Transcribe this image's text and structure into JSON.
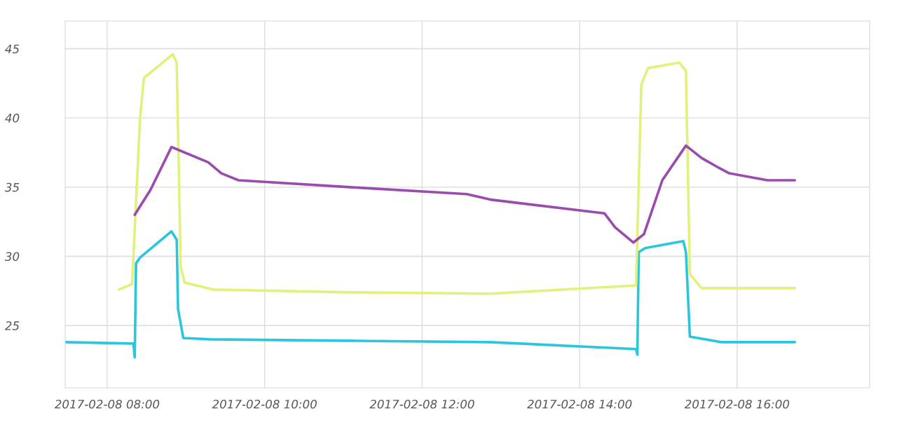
{
  "chart_data": {
    "type": "line",
    "xlim": [
      "2017-02-08T07:28",
      "2017-02-08T17:41"
    ],
    "ylim": [
      20.5,
      47
    ],
    "xticks": [
      {
        "value": "2017-02-08T08:00",
        "label": "2017-02-08 08:00"
      },
      {
        "value": "2017-02-08T10:00",
        "label": "2017-02-08 10:00"
      },
      {
        "value": "2017-02-08T12:00",
        "label": "2017-02-08 12:00"
      },
      {
        "value": "2017-02-08T14:00",
        "label": "2017-02-08 14:00"
      },
      {
        "value": "2017-02-08T16:00",
        "label": "2017-02-08 16:00"
      }
    ],
    "yticks": [
      25,
      30,
      35,
      40,
      45
    ],
    "grid": true,
    "marker": "none",
    "line_style": "solid",
    "series": [
      {
        "color": "#2bc6de",
        "x": [
          "2017-02-08T07:28",
          "2017-02-08T08:20",
          "2017-02-08T08:21",
          "2017-02-08T08:22",
          "2017-02-08T08:25",
          "2017-02-08T08:49",
          "2017-02-08T08:53",
          "2017-02-08T08:54",
          "2017-02-08T08:58",
          "2017-02-08T09:19",
          "2017-02-08T11:05",
          "2017-02-08T12:52",
          "2017-02-08T14:43",
          "2017-02-08T14:44",
          "2017-02-08T14:45",
          "2017-02-08T14:50",
          "2017-02-08T15:19",
          "2017-02-08T15:21",
          "2017-02-08T15:24",
          "2017-02-08T15:48",
          "2017-02-08T16:44"
        ],
        "values": [
          23.8,
          23.7,
          22.7,
          29.5,
          29.9,
          31.8,
          31.2,
          26.2,
          24.1,
          24.0,
          23.9,
          23.8,
          23.3,
          22.9,
          30.3,
          30.6,
          31.1,
          30.3,
          24.2,
          23.8,
          23.8
        ]
      },
      {
        "color": "#e3f07c",
        "x": [
          "2017-02-08T08:09",
          "2017-02-08T08:19",
          "2017-02-08T08:25",
          "2017-02-08T08:28",
          "2017-02-08T08:32",
          "2017-02-08T08:50",
          "2017-02-08T08:53",
          "2017-02-08T08:56",
          "2017-02-08T08:59",
          "2017-02-08T09:21",
          "2017-02-08T11:05",
          "2017-02-08T12:52",
          "2017-02-08T14:43",
          "2017-02-08T14:47",
          "2017-02-08T14:52",
          "2017-02-08T15:16",
          "2017-02-08T15:21",
          "2017-02-08T15:24",
          "2017-02-08T15:33",
          "2017-02-08T16:44"
        ],
        "values": [
          27.6,
          28.0,
          39.9,
          42.9,
          43.2,
          44.6,
          44.0,
          29.3,
          28.1,
          27.6,
          27.4,
          27.3,
          27.9,
          42.4,
          43.6,
          44.0,
          43.4,
          28.7,
          27.7,
          27.7
        ]
      },
      {
        "color": "#9b4aad",
        "x": [
          "2017-02-08T08:21",
          "2017-02-08T08:33",
          "2017-02-08T08:49",
          "2017-02-08T09:17",
          "2017-02-08T09:27",
          "2017-02-08T09:40",
          "2017-02-08T11:05",
          "2017-02-08T12:34",
          "2017-02-08T12:52",
          "2017-02-08T14:19",
          "2017-02-08T14:27",
          "2017-02-08T14:41",
          "2017-02-08T14:49",
          "2017-02-08T15:03",
          "2017-02-08T15:21",
          "2017-02-08T15:33",
          "2017-02-08T15:46",
          "2017-02-08T15:54",
          "2017-02-08T16:23",
          "2017-02-08T16:44"
        ],
        "values": [
          33.0,
          34.8,
          37.9,
          36.8,
          36.0,
          35.5,
          35.0,
          34.5,
          34.1,
          33.1,
          32.1,
          31.0,
          31.6,
          35.5,
          38.0,
          37.1,
          36.4,
          36.0,
          35.5,
          35.5
        ]
      }
    ]
  }
}
